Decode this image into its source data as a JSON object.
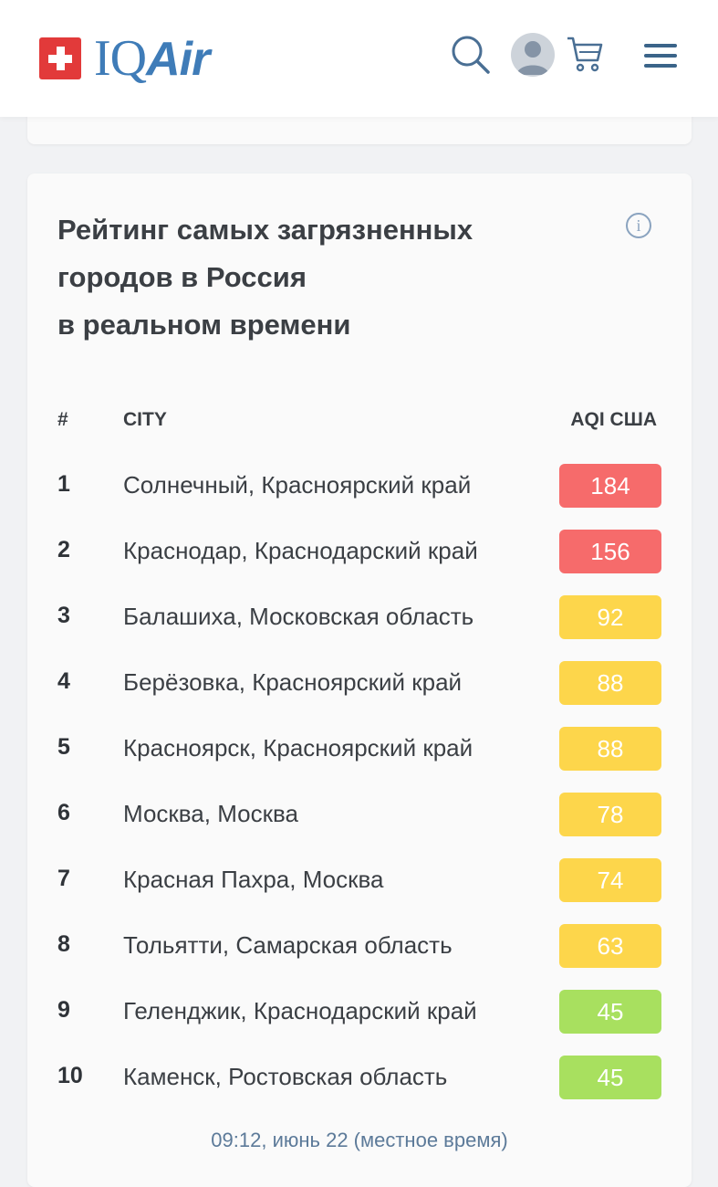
{
  "header": {
    "brand_iq": "IQ",
    "brand_air": "Air",
    "icons": [
      "search-icon",
      "avatar",
      "cart-icon",
      "menu-icon"
    ]
  },
  "ranking": {
    "title_line1": "Рейтинг самых загрязненных",
    "title_line2": "городов в Россия",
    "title_line3": "в реальном времени",
    "col_num": "#",
    "col_city": "CITY",
    "col_aqi": "AQI США",
    "rows": [
      {
        "rank": "1",
        "city": "Солнечный, Красноярский край",
        "aqi": "184",
        "color": "#f66b6b"
      },
      {
        "rank": "2",
        "city": "Краснодар, Краснодарский край",
        "aqi": "156",
        "color": "#f66b6b"
      },
      {
        "rank": "3",
        "city": "Балашиха, Московская область",
        "aqi": "92",
        "color": "#fdd64b"
      },
      {
        "rank": "4",
        "city": "Берёзовка, Красноярский край",
        "aqi": "88",
        "color": "#fdd64b"
      },
      {
        "rank": "5",
        "city": "Красноярск, Красноярский край",
        "aqi": "88",
        "color": "#fdd64b"
      },
      {
        "rank": "6",
        "city": "Москва, Москва",
        "aqi": "78",
        "color": "#fdd64b"
      },
      {
        "rank": "7",
        "city": "Красная Пахра, Москва",
        "aqi": "74",
        "color": "#fdd64b"
      },
      {
        "rank": "8",
        "city": "Тольятти, Самарская область",
        "aqi": "63",
        "color": "#fdd64b"
      },
      {
        "rank": "9",
        "city": "Геленджик, Краснодарский край",
        "aqi": "45",
        "color": "#a8e05f"
      },
      {
        "rank": "10",
        "city": "Каменск, Ростовская область",
        "aqi": "45",
        "color": "#a8e05f"
      }
    ],
    "timestamp": "09:12, июнь 22 (местное время)"
  }
}
